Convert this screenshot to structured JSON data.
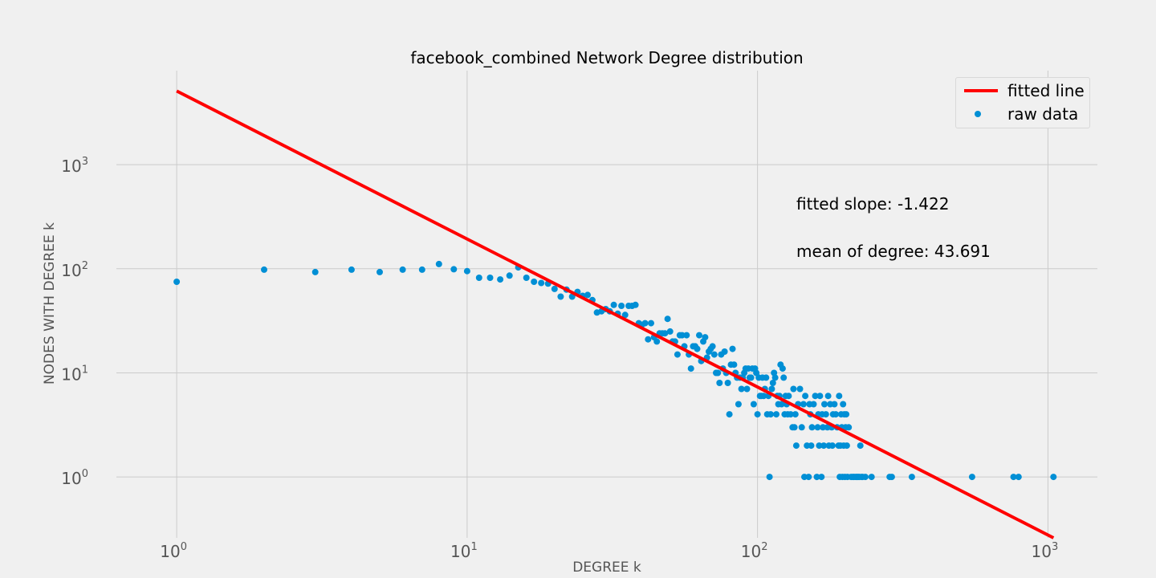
{
  "chart_data": {
    "type": "scatter",
    "title": "facebook_combined Network Degree distribution",
    "xlabel": "DEGREE k",
    "ylabel": "NODES WITH DEGREE k",
    "x_scale": "log",
    "y_scale": "log",
    "xlim": [
      0.62,
      1480
    ],
    "ylim": [
      0.26,
      8000
    ],
    "grid": true,
    "legend_position": "top-right",
    "x_ticks": [
      {
        "value": 1,
        "base": "10",
        "exp": "0"
      },
      {
        "value": 10,
        "base": "10",
        "exp": "1"
      },
      {
        "value": 100,
        "base": "10",
        "exp": "2"
      },
      {
        "value": 1000,
        "base": "10",
        "exp": "3"
      }
    ],
    "y_ticks": [
      {
        "value": 1,
        "base": "10",
        "exp": "0"
      },
      {
        "value": 10,
        "base": "10",
        "exp": "1"
      },
      {
        "value": 100,
        "base": "10",
        "exp": "2"
      },
      {
        "value": 1000,
        "base": "10",
        "exp": "3"
      }
    ],
    "series": [
      {
        "name": "raw data",
        "kind": "scatter",
        "color": "#008fd5",
        "points": [
          [
            1,
            75
          ],
          [
            2,
            98
          ],
          [
            3,
            93
          ],
          [
            4,
            98
          ],
          [
            5,
            93
          ],
          [
            6,
            98
          ],
          [
            7,
            98
          ],
          [
            8,
            111
          ],
          [
            9,
            99
          ],
          [
            10,
            95
          ],
          [
            11,
            82
          ],
          [
            12,
            82
          ],
          [
            13,
            79
          ],
          [
            14,
            86
          ],
          [
            15,
            103
          ],
          [
            16,
            82
          ],
          [
            17,
            75
          ],
          [
            18,
            73
          ],
          [
            19,
            72
          ],
          [
            20,
            64
          ],
          [
            21,
            54
          ],
          [
            22,
            63
          ],
          [
            23,
            54
          ],
          [
            24,
            60
          ],
          [
            25,
            55
          ],
          [
            26,
            56
          ],
          [
            27,
            50
          ],
          [
            28,
            38
          ],
          [
            29,
            39
          ],
          [
            30,
            41
          ],
          [
            31,
            39
          ],
          [
            32,
            45
          ],
          [
            33,
            37
          ],
          [
            34,
            44
          ],
          [
            35,
            36
          ],
          [
            36,
            44
          ],
          [
            37,
            44
          ],
          [
            38,
            45
          ],
          [
            39,
            30
          ],
          [
            40,
            29
          ],
          [
            41,
            30
          ],
          [
            42,
            21
          ],
          [
            43,
            30
          ],
          [
            44,
            22
          ],
          [
            45,
            20
          ],
          [
            46,
            24
          ],
          [
            47,
            24
          ],
          [
            48,
            24
          ],
          [
            49,
            33
          ],
          [
            50,
            25
          ],
          [
            51,
            20
          ],
          [
            52,
            20
          ],
          [
            53,
            15
          ],
          [
            54,
            23
          ],
          [
            55,
            23
          ],
          [
            56,
            18
          ],
          [
            57,
            23
          ],
          [
            58,
            15
          ],
          [
            59,
            11
          ],
          [
            60,
            18
          ],
          [
            61,
            18
          ],
          [
            62,
            17
          ],
          [
            63,
            23
          ],
          [
            64,
            13
          ],
          [
            65,
            20
          ],
          [
            66,
            22
          ],
          [
            67,
            14
          ],
          [
            68,
            16
          ],
          [
            69,
            17
          ],
          [
            70,
            18
          ],
          [
            71,
            15
          ],
          [
            72,
            10
          ],
          [
            73,
            10
          ],
          [
            74,
            8
          ],
          [
            75,
            15
          ],
          [
            76,
            11
          ],
          [
            77,
            16
          ],
          [
            78,
            10
          ],
          [
            79,
            8
          ],
          [
            80,
            4
          ],
          [
            81,
            12
          ],
          [
            82,
            17
          ],
          [
            83,
            12
          ],
          [
            84,
            10
          ],
          [
            85,
            9
          ],
          [
            86,
            5
          ],
          [
            87,
            9
          ],
          [
            88,
            7
          ],
          [
            89,
            9
          ],
          [
            90,
            10
          ],
          [
            91,
            11
          ],
          [
            92,
            7
          ],
          [
            93,
            11
          ],
          [
            94,
            9
          ],
          [
            95,
            9
          ],
          [
            96,
            11
          ],
          [
            97,
            5
          ],
          [
            98,
            11
          ],
          [
            99,
            10
          ],
          [
            100,
            4
          ],
          [
            101,
            9
          ],
          [
            102,
            6
          ],
          [
            103,
            6
          ],
          [
            104,
            9
          ],
          [
            105,
            6
          ],
          [
            106,
            7
          ],
          [
            107,
            9
          ],
          [
            108,
            4
          ],
          [
            109,
            6
          ],
          [
            110,
            1
          ],
          [
            111,
            4
          ],
          [
            112,
            7
          ],
          [
            113,
            8
          ],
          [
            114,
            10
          ],
          [
            115,
            9
          ],
          [
            116,
            4
          ],
          [
            117,
            6
          ],
          [
            118,
            5
          ],
          [
            119,
            6
          ],
          [
            120,
            12
          ],
          [
            121,
            5
          ],
          [
            122,
            11
          ],
          [
            123,
            9
          ],
          [
            124,
            4
          ],
          [
            125,
            6
          ],
          [
            126,
            5
          ],
          [
            127,
            4
          ],
          [
            128,
            6
          ],
          [
            130,
            4
          ],
          [
            132,
            3
          ],
          [
            133,
            7
          ],
          [
            134,
            3
          ],
          [
            135,
            4
          ],
          [
            136,
            2
          ],
          [
            138,
            5
          ],
          [
            140,
            7
          ],
          [
            142,
            3
          ],
          [
            144,
            5
          ],
          [
            145,
            1
          ],
          [
            146,
            6
          ],
          [
            148,
            2
          ],
          [
            150,
            1
          ],
          [
            151,
            5
          ],
          [
            152,
            4
          ],
          [
            153,
            2
          ],
          [
            154,
            3
          ],
          [
            156,
            5
          ],
          [
            158,
            6
          ],
          [
            160,
            1
          ],
          [
            161,
            3
          ],
          [
            162,
            4
          ],
          [
            163,
            2
          ],
          [
            164,
            6
          ],
          [
            166,
            1
          ],
          [
            167,
            4
          ],
          [
            168,
            3
          ],
          [
            169,
            2
          ],
          [
            170,
            5
          ],
          [
            172,
            4
          ],
          [
            174,
            3
          ],
          [
            175,
            6
          ],
          [
            176,
            2
          ],
          [
            178,
            5
          ],
          [
            180,
            3
          ],
          [
            181,
            2
          ],
          [
            182,
            4
          ],
          [
            184,
            5
          ],
          [
            186,
            4
          ],
          [
            188,
            3
          ],
          [
            190,
            2
          ],
          [
            191,
            6
          ],
          [
            192,
            1
          ],
          [
            193,
            2
          ],
          [
            194,
            4
          ],
          [
            195,
            3
          ],
          [
            196,
            1
          ],
          [
            197,
            5
          ],
          [
            198,
            2
          ],
          [
            199,
            4
          ],
          [
            200,
            1
          ],
          [
            201,
            3
          ],
          [
            202,
            4
          ],
          [
            203,
            2
          ],
          [
            204,
            1
          ],
          [
            206,
            3
          ],
          [
            210,
            1
          ],
          [
            213,
            1
          ],
          [
            215,
            1
          ],
          [
            218,
            1
          ],
          [
            220,
            1
          ],
          [
            222,
            1
          ],
          [
            224,
            1
          ],
          [
            226,
            2
          ],
          [
            228,
            1
          ],
          [
            230,
            1
          ],
          [
            235,
            1
          ],
          [
            247,
            1
          ],
          [
            285,
            1
          ],
          [
            290,
            1
          ],
          [
            340,
            1
          ],
          [
            548,
            1
          ],
          [
            761,
            1
          ],
          [
            792,
            1
          ],
          [
            1045,
            1
          ]
        ]
      },
      {
        "name": "fitted line",
        "kind": "line",
        "color": "#ff0000",
        "points": [
          [
            1,
            5100
          ],
          [
            1045,
            0.26
          ]
        ]
      }
    ],
    "annotations": [
      {
        "id": "slope",
        "text": "fitted slope: -1.422"
      },
      {
        "id": "mean",
        "text": "mean of degree: 43.691"
      }
    ]
  }
}
